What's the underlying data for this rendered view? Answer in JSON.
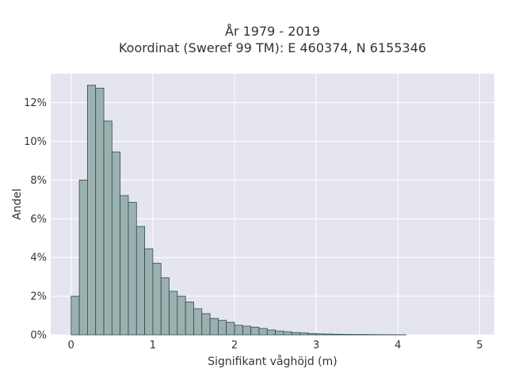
{
  "chart_data": {
    "type": "bar",
    "title_lines": [
      "År 1979 - 2019",
      "Koordinat (Sweref 99 TM): E 460374, N 6155346"
    ],
    "xlabel": "Signifikant våghöjd (m)",
    "ylabel": "Andel",
    "xlim": [
      -0.25,
      5.18
    ],
    "ylim": [
      0,
      13.5
    ],
    "x_ticks": [
      0,
      1,
      2,
      3,
      4,
      5
    ],
    "x_tick_labels": [
      "0",
      "1",
      "2",
      "3",
      "4",
      "5"
    ],
    "y_ticks": [
      0,
      2,
      4,
      6,
      8,
      10,
      12
    ],
    "y_tick_labels": [
      "0%",
      "2%",
      "4%",
      "6%",
      "8%",
      "10%",
      "12%"
    ],
    "grid": true,
    "bin_width": 0.1,
    "bin_start": 0.0,
    "values": [
      2.0,
      8.0,
      12.9,
      12.75,
      11.05,
      9.45,
      7.2,
      6.85,
      5.6,
      4.45,
      3.7,
      2.95,
      2.25,
      2.0,
      1.7,
      1.35,
      1.1,
      0.85,
      0.75,
      0.65,
      0.5,
      0.45,
      0.4,
      0.33,
      0.25,
      0.2,
      0.16,
      0.12,
      0.1,
      0.07,
      0.05,
      0.04,
      0.03,
      0.025,
      0.02,
      0.02,
      0.015,
      0.012,
      0.01,
      0.008,
      0.006
    ],
    "colors": {
      "bar_fill": "#9ab1b0",
      "bar_stroke": "#2f4a4a",
      "plot_bg": "#e5e5f0",
      "grid": "#ffffff",
      "text": "#333333"
    }
  }
}
